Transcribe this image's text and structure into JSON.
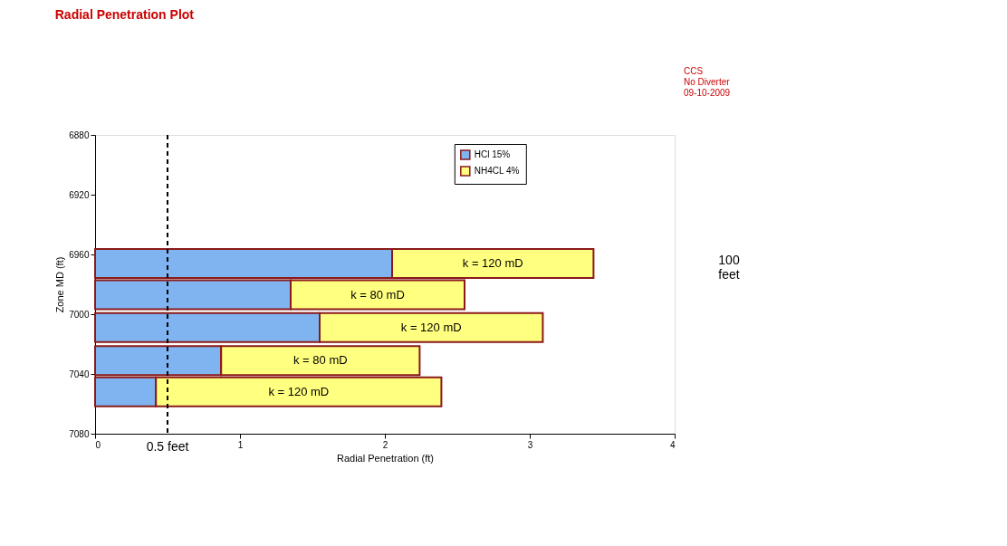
{
  "chart_data": {
    "type": "bar",
    "orientation": "horizontal",
    "stacked": true,
    "title": "Radial Penetration Plot",
    "subtitle": [
      "CCS",
      "No Diverter",
      "09-10-2009"
    ],
    "xlabel": "Radial Penetration (ft)",
    "ylabel": "Zone MD (ft)",
    "x": [
      6966,
      6987,
      7009,
      7031,
      7052
    ],
    "series": [
      {
        "name": "HCl 15%",
        "color": "#80b4f0",
        "values": [
          2.05,
          1.35,
          1.55,
          0.87,
          0.42
        ]
      },
      {
        "name": "NH4CL 4%",
        "color": "#ffff80",
        "values": [
          1.39,
          1.2,
          1.54,
          1.37,
          1.97
        ]
      }
    ],
    "xlim": [
      0,
      4
    ],
    "xticks": [
      0,
      1,
      2,
      3,
      4
    ],
    "ylim": [
      7080,
      6880
    ],
    "yticks": [
      6880,
      6920,
      6960,
      7000,
      7040,
      7080
    ],
    "ref_lines": [
      {
        "axis": "x",
        "value": 0.5,
        "label": "0.5 feet",
        "line_style": "dashed",
        "color": "#000000"
      }
    ],
    "annotations": [
      "k = 120 mD",
      "k = 80 mD",
      "k = 120 mD",
      "k = 80 mD",
      "k = 120 mD",
      "100\nfeet"
    ],
    "legend": "top right",
    "grid": false
  }
}
